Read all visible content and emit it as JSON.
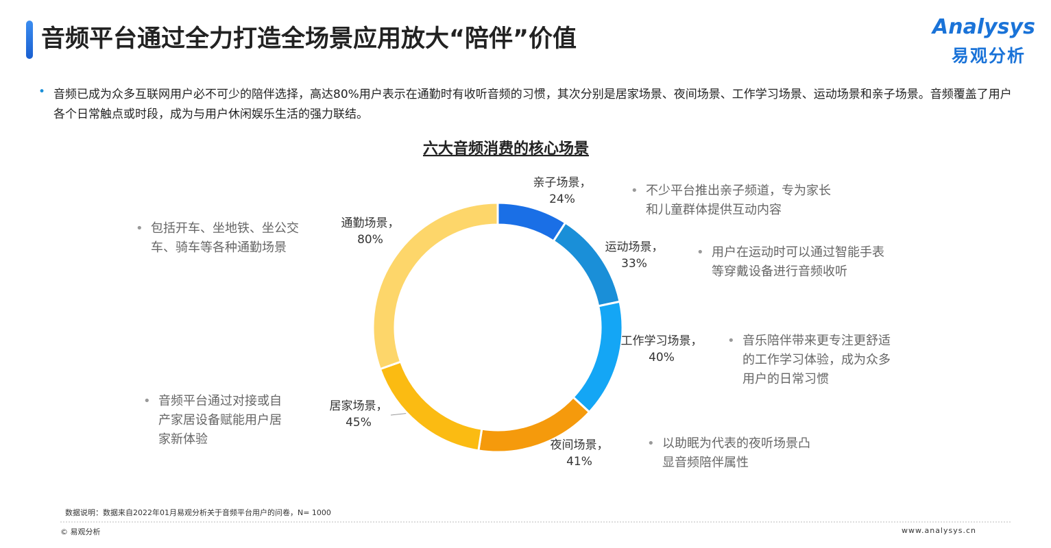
{
  "header": {
    "title": "音频平台通过全力打造全场景应用放大“陪伴”价值",
    "logo": "Analysys",
    "logo_cn": "易观分析"
  },
  "intro": "音频已成为众多互联网用户必不可少的陪伴选择，高达80%用户表示在通勤时有收听音频的习惯，其次分别是居家场景、夜间场景、工作学习场景、运动场景和亲子场景。音频覆盖了用户各个日常触点或时段，成为与用户休闲娱乐生活的强力联结。",
  "chart_data": {
    "type": "pie",
    "title": "六大音频消费的核心场景",
    "categories": [
      "亲子场景，",
      "运动场景，",
      "工作学习场景，",
      "夜间场景，",
      "居家场景，",
      "通勤场景，"
    ],
    "values": [
      24,
      33,
      40,
      41,
      45,
      80
    ],
    "value_labels": [
      "24%",
      "33%",
      "40%",
      "41%",
      "45%",
      "80%"
    ],
    "colors": [
      "#1a6fe6",
      "#1a8fd8",
      "#14a6f5",
      "#f59a0c",
      "#fbbb12",
      "#fdd66a"
    ],
    "annotations": [
      "不少平台推出亲子频道，专为家长和儿童群体提供互动内容",
      "用户在运动时可以通过智能手表等穿戴设备进行音频收听",
      "音乐陪伴带来更专注更舒适的工作学习体验，成为众多用户的日常习惯",
      "以助眠为代表的夜听场景凸显音频陪伴属性",
      "音频平台通过对接或自产家居设备赋能用户居家新体验",
      "包括开车、坐地铁、坐公交车、骑车等各种通勤场景"
    ]
  },
  "footer": {
    "note": "数据说明：数据来自2022年01月易观分析关于音频平台用户的问卷，N= 1000",
    "copyright": "© 易观分析",
    "url": "www.analysys.cn"
  }
}
